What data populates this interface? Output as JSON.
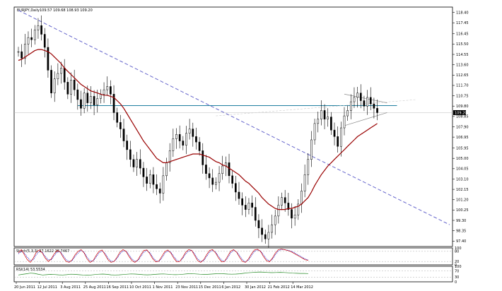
{
  "header": {
    "symbol_line": "EURJPY,Daily",
    "ohlc": "109.57 109.68 108.93 109.20"
  },
  "price_panel": {
    "current_price": "109.20",
    "y_ticks": [
      "118.40",
      "117.45",
      "116.45",
      "115.50",
      "114.55",
      "113.60",
      "112.65",
      "111.70",
      "110.75",
      "109.80",
      "108.85",
      "107.90",
      "106.95",
      "105.95",
      "105.00",
      "104.05",
      "103.10",
      "102.15",
      "101.20",
      "100.25",
      "99.30",
      "98.35",
      "97.40"
    ]
  },
  "stoch_panel": {
    "label": "Stoch(5,3,3) 27.1622 28.7467",
    "y_ticks": [
      "100",
      "80",
      "20",
      "0"
    ]
  },
  "rsi_panel": {
    "label": "RSI(14) 53.5534",
    "y_ticks": [
      "100",
      "70",
      "30",
      "0"
    ]
  },
  "x_ticks": [
    "20 Jun 2011",
    "12 Jul 2011",
    "3 Aug 2011",
    "25 Aug 2011",
    "16 Sep 2011",
    "10 Oct 2011",
    "1 Nov 2011",
    "23 Nov 2011",
    "15 Dec 2011",
    "6 Jan 2012",
    "30 Jan 2012",
    "21 Feb 2012",
    "14 Mar 2012"
  ],
  "colors": {
    "candles": "#000000",
    "moving_average": "#990000",
    "horizontal_line": "#1f7f9f",
    "trend_line": "#6666cc",
    "stoch_main": "#cc0000",
    "stoch_signal": "#0000cc",
    "rsi": "#228822",
    "price_badge": "#000000"
  },
  "chart_data": {
    "type": "line",
    "series": [
      {
        "values": [
          114.8,
          114.2,
          115.5,
          116.1,
          115.9,
          116.8,
          117.2,
          116.4,
          115.2,
          113.1,
          111.0,
          112.3,
          112.8,
          113.3,
          112.0,
          110.9,
          112.2,
          111.3,
          110.4,
          109.6,
          111.0,
          110.1,
          110.7,
          109.9,
          110.5,
          110.9,
          111.3,
          111.6,
          110.9,
          109.2,
          108.3,
          107.7,
          106.6,
          105.8,
          104.9,
          104.2,
          104.9,
          104.1,
          103.3,
          102.7,
          103.5,
          102.6,
          102.2,
          101.8,
          103.4,
          104.6,
          105.7,
          106.8,
          107.2,
          106.6,
          106.2,
          107.3,
          107.7,
          107.0,
          106.5,
          105.7,
          104.4,
          103.6,
          103.2,
          102.6,
          102.8,
          103.6,
          104.3,
          104.6,
          103.4,
          102.7,
          101.9,
          101.3,
          100.7,
          100.3,
          100.9,
          100.5,
          99.3,
          98.6,
          98.0,
          97.6,
          98.2,
          98.9,
          99.7,
          100.7,
          101.4,
          100.9,
          100.3,
          99.5,
          99.8,
          100.8,
          102.0,
          103.5,
          104.9,
          106.7,
          108.2,
          108.6,
          109.4,
          108.6,
          108.8,
          107.6,
          107.0,
          106.1,
          107.8,
          108.9,
          109.4,
          110.2,
          110.6,
          111.0,
          110.3,
          109.8,
          110.6,
          110.0,
          109.6,
          109.2
        ],
        "ma": [
          114.0,
          114.1,
          114.3,
          114.5,
          114.7,
          114.9,
          115.0,
          115.0,
          114.9,
          114.8,
          114.6,
          114.3,
          114.0,
          113.7,
          113.3,
          113.0,
          112.7,
          112.4,
          112.1,
          111.8,
          111.6,
          111.4,
          111.2,
          111.1,
          111.0,
          110.9,
          110.8,
          110.8,
          110.7,
          110.6,
          110.3,
          110.0,
          109.6,
          109.1,
          108.6,
          108.1,
          107.6,
          107.1,
          106.6,
          106.2,
          105.8,
          105.4,
          105.0,
          104.8,
          104.6,
          104.6,
          104.7,
          104.8,
          104.9,
          105.0,
          105.1,
          105.2,
          105.3,
          105.4,
          105.4,
          105.4,
          105.3,
          105.2,
          105.1,
          104.9,
          104.7,
          104.6,
          104.4,
          104.3,
          104.1,
          103.9,
          103.7,
          103.5,
          103.2,
          102.9,
          102.7,
          102.4,
          102.1,
          101.8,
          101.4,
          101.1,
          100.8,
          100.6,
          100.4,
          100.3,
          100.3,
          100.3,
          100.4,
          100.4,
          100.5,
          100.6,
          100.8,
          101.1,
          101.4,
          101.9,
          102.5,
          103.0,
          103.5,
          103.9,
          104.3,
          104.6,
          104.9,
          105.2,
          105.5,
          105.8,
          106.1,
          106.4,
          106.7,
          107.0,
          107.2,
          107.4,
          107.6,
          107.8,
          108.0,
          108.2
        ]
      }
    ],
    "horizontal_level": 109.85,
    "trend_line": {
      "start": [
        0,
        118.6
      ],
      "end": [
        131,
        98.9
      ]
    },
    "triangle": {
      "upper": [
        [
          99,
          110.9
        ],
        [
          112,
          110.1
        ]
      ],
      "lower": [
        [
          99,
          108.0
        ],
        [
          112,
          109.2
        ]
      ],
      "upper_dashed_end": [
        121,
        110.4
      ]
    },
    "ylim": [
      96.9,
      118.9
    ],
    "stoch": {
      "main": [
        70,
        90,
        60,
        30,
        15,
        40,
        75,
        88,
        70,
        40,
        20,
        35,
        65,
        85,
        75,
        45,
        20,
        15,
        30,
        60,
        80,
        90,
        70,
        35,
        15,
        25,
        55,
        80,
        88,
        60,
        30,
        15,
        20,
        45,
        75,
        90,
        80,
        50,
        25,
        15,
        30,
        60,
        85,
        88,
        65,
        35,
        18,
        22,
        50,
        78,
        88,
        70,
        40,
        18,
        20,
        45,
        75,
        90,
        85,
        55,
        25,
        15,
        30,
        60,
        85,
        90,
        70,
        40,
        18,
        20,
        50,
        80,
        90,
        75,
        45,
        20,
        15,
        35,
        65,
        88,
        92,
        80,
        50,
        25,
        18,
        40,
        70,
        90,
        93,
        90,
        85,
        80,
        70,
        60,
        50,
        40,
        30,
        27
      ],
      "signal": [
        65,
        80,
        70,
        45,
        25,
        30,
        60,
        80,
        75,
        50,
        30,
        30,
        55,
        75,
        78,
        55,
        30,
        20,
        25,
        50,
        70,
        85,
        75,
        45,
        25,
        22,
        45,
        70,
        82,
        68,
        40,
        22,
        20,
        38,
        65,
        82,
        82,
        60,
        35,
        20,
        25,
        50,
        75,
        85,
        72,
        45,
        25,
        20,
        40,
        68,
        82,
        75,
        50,
        28,
        20,
        38,
        65,
        82,
        85,
        65,
        35,
        20,
        25,
        50,
        75,
        85,
        75,
        50,
        28,
        20,
        40,
        70,
        85,
        78,
        55,
        30,
        18,
        28,
        55,
        80,
        88,
        82,
        60,
        35,
        22,
        32,
        60,
        82,
        90,
        90,
        87,
        82,
        75,
        65,
        55,
        45,
        35,
        29
      ]
    },
    "rsi": [
      44,
      48,
      52,
      56,
      54,
      48,
      44,
      46,
      48,
      47,
      45,
      44,
      46,
      49,
      48,
      46,
      44,
      43,
      44,
      47,
      49,
      50,
      48,
      45,
      44,
      45,
      47,
      49,
      51,
      50,
      48,
      46,
      45,
      46,
      48,
      50,
      51,
      49,
      47,
      46,
      47,
      49,
      52,
      53,
      51,
      49,
      48,
      48,
      50,
      52,
      53,
      52,
      50,
      49,
      50,
      52,
      55,
      58,
      60,
      62,
      63,
      62,
      60,
      59,
      60,
      61,
      60,
      58,
      56,
      55,
      54,
      54,
      53
    ]
  }
}
